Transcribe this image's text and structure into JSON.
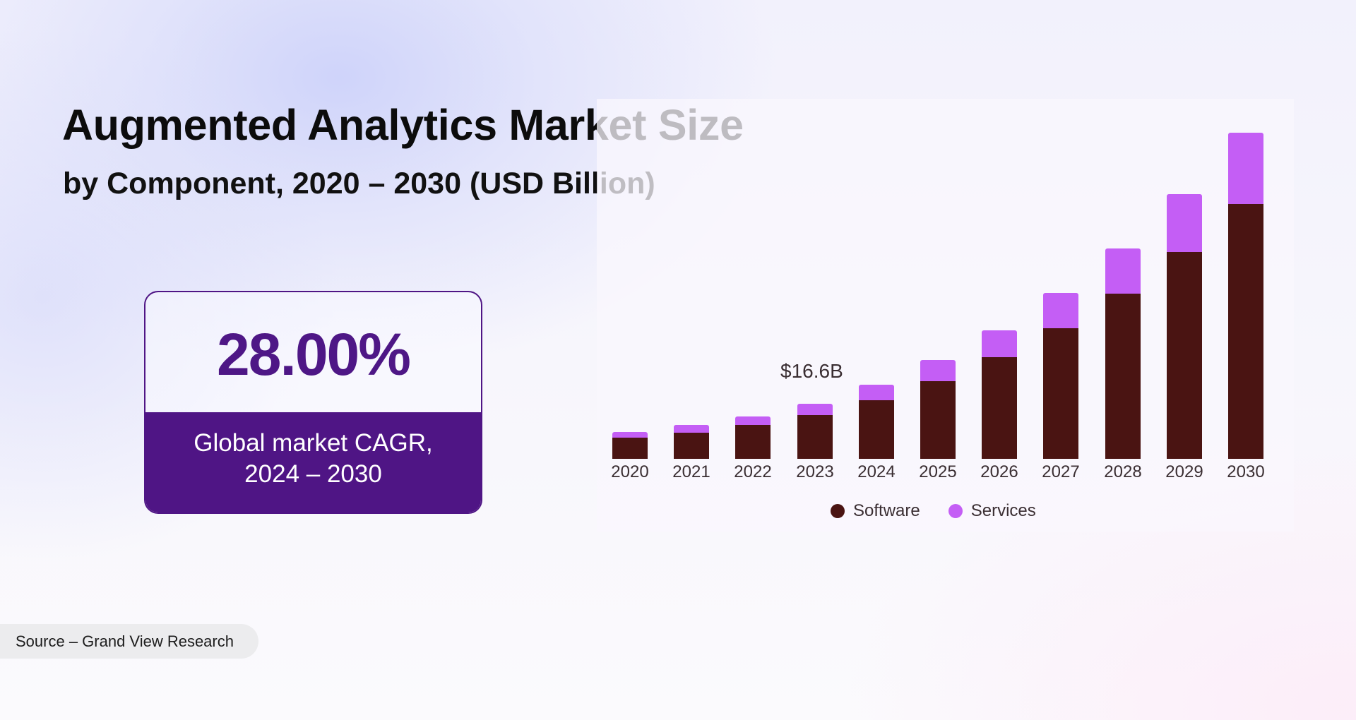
{
  "header": {
    "title": "Augmented Analytics Market Size",
    "subtitle": "by Component, 2020 – 2030 (USD Billion)"
  },
  "cagr": {
    "value": "28.00%",
    "label_line1": "Global market CAGR,",
    "label_line2": "2024 – 2030"
  },
  "source": "Source – Grand View Research",
  "colors": {
    "software": "#4a1412",
    "services": "#c45ef5",
    "accent_purple": "#4f1585"
  },
  "chart_data": {
    "type": "bar",
    "stacked": true,
    "title": "Augmented Analytics Market Size",
    "subtitle": "by Component, 2020 – 2030 (USD Billion)",
    "xlabel": "",
    "ylabel": "USD Billion",
    "grid": false,
    "legend_position": "bottom",
    "categories": [
      "2020",
      "2021",
      "2022",
      "2023",
      "2024",
      "2025",
      "2026",
      "2027",
      "2028",
      "2029",
      "2030"
    ],
    "series": [
      {
        "name": "Software",
        "color": "#4a1412",
        "values": [
          6.4,
          7.9,
          10.2,
          13.2,
          17.7,
          23.5,
          30.6,
          39.3,
          49.7,
          62.4,
          76.9
        ]
      },
      {
        "name": "Services",
        "color": "#c45ef5",
        "values": [
          1.7,
          2.3,
          2.6,
          3.4,
          4.6,
          6.2,
          8.2,
          10.7,
          13.8,
          17.4,
          21.5
        ]
      }
    ],
    "annotations": [
      {
        "category": "2023",
        "text": "$16.6B"
      }
    ]
  }
}
